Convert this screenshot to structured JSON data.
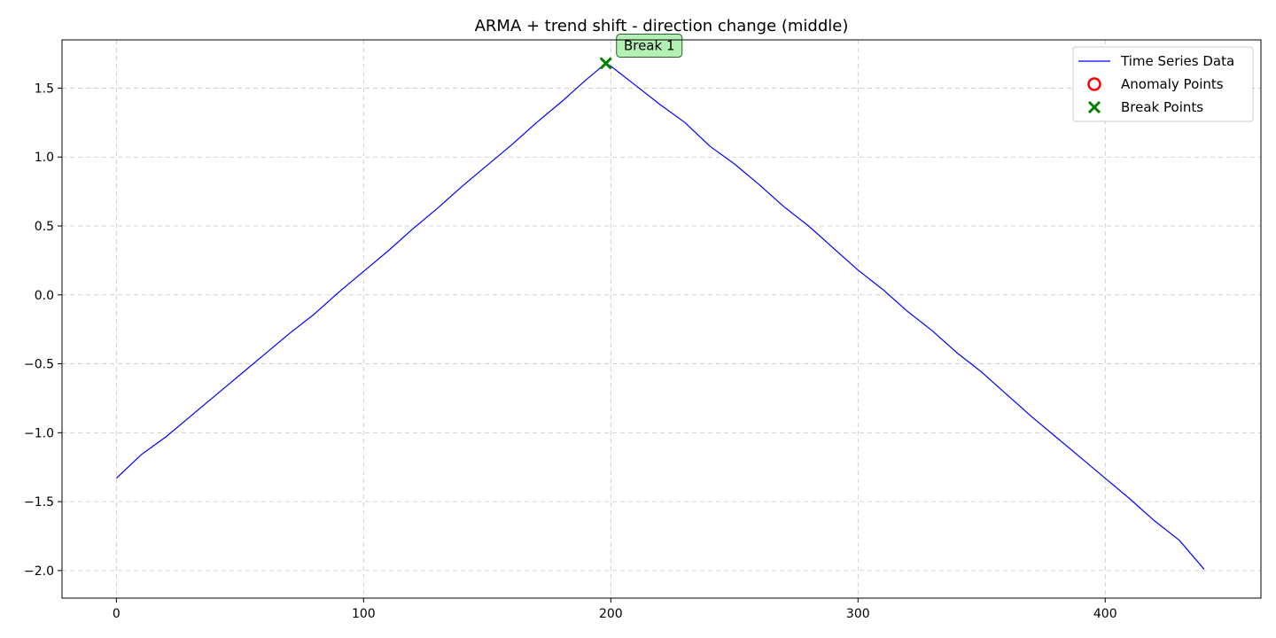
{
  "chart_data": {
    "type": "line",
    "title": "ARMA + trend shift - direction change (middle)",
    "xlabel": "",
    "ylabel": "",
    "xlim": [
      -22,
      463
    ],
    "ylim": [
      -2.2,
      1.85
    ],
    "xticks": [
      0,
      100,
      200,
      300,
      400
    ],
    "xtick_labels": [
      "0",
      "100",
      "200",
      "300",
      "400"
    ],
    "yticks": [
      -2.0,
      -1.5,
      -1.0,
      -0.5,
      0.0,
      0.5,
      1.0,
      1.5
    ],
    "ytick_labels": [
      "−2.0",
      "−1.5",
      "−1.0",
      "−0.5",
      "0.0",
      "0.5",
      "1.0",
      "1.5"
    ],
    "grid": true,
    "legend_position": "top-right",
    "series": [
      {
        "name": "Time Series Data",
        "color": "#0000ff",
        "x": [
          0,
          10,
          20,
          30,
          40,
          50,
          60,
          70,
          80,
          90,
          100,
          110,
          120,
          130,
          140,
          150,
          160,
          170,
          180,
          190,
          198,
          200,
          210,
          220,
          230,
          240,
          250,
          260,
          270,
          280,
          290,
          300,
          310,
          320,
          330,
          340,
          350,
          360,
          370,
          380,
          390,
          400,
          410,
          420,
          430,
          440
        ],
        "values": [
          -1.33,
          -1.16,
          -1.03,
          -0.88,
          -0.73,
          -0.58,
          -0.43,
          -0.28,
          -0.14,
          0.02,
          0.17,
          0.32,
          0.48,
          0.63,
          0.79,
          0.94,
          1.09,
          1.25,
          1.4,
          1.56,
          1.68,
          1.66,
          1.52,
          1.38,
          1.25,
          1.08,
          0.95,
          0.8,
          0.64,
          0.5,
          0.34,
          0.18,
          0.04,
          -0.12,
          -0.26,
          -0.42,
          -0.56,
          -0.72,
          -0.88,
          -1.03,
          -1.18,
          -1.33,
          -1.48,
          -1.64,
          -1.78,
          -1.99
        ]
      }
    ],
    "anomaly_points": {
      "name": "Anomaly Points",
      "color": "#ff0000",
      "x": [],
      "values": []
    },
    "break_points": {
      "name": "Break Points",
      "color": "#008000",
      "x": [
        198
      ],
      "values": [
        1.68
      ],
      "labels": [
        "Break 1"
      ]
    }
  }
}
